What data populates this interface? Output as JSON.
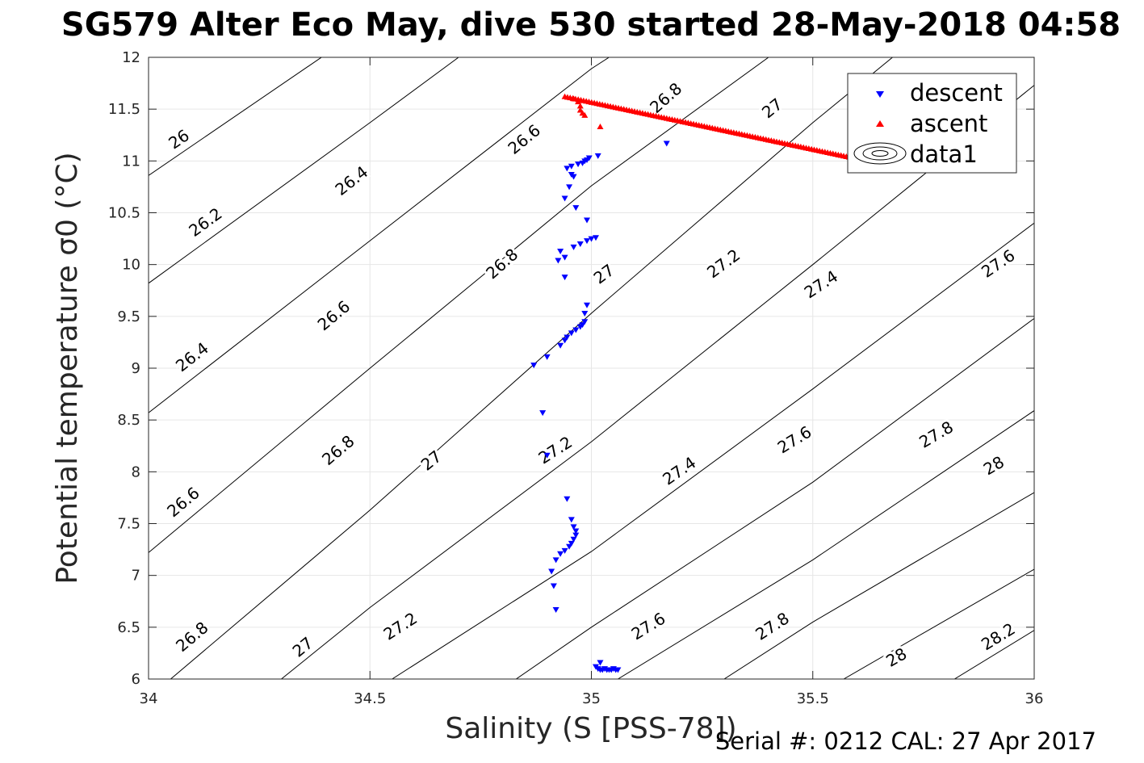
{
  "chart_data": {
    "type": "scatter",
    "title": "SG579 Alter Eco May, dive 530 started 28-May-2018 04:58",
    "xlabel": "Salinity (S [PSS-78])",
    "ylabel": "Potential temperature σ0 (°C)",
    "xlim": [
      34,
      36
    ],
    "ylim": [
      6,
      12
    ],
    "xticks": [
      34,
      34.5,
      35,
      35.5,
      36
    ],
    "xtick_labels": [
      "34",
      "34.5",
      "35",
      "35.5",
      "36"
    ],
    "yticks": [
      6,
      6.5,
      7,
      7.5,
      8,
      8.5,
      9,
      9.5,
      10,
      10.5,
      11,
      11.5,
      12
    ],
    "ytick_labels": [
      "6",
      "6.5",
      "7",
      "7.5",
      "8",
      "8.5",
      "9",
      "9.5",
      "10",
      "10.5",
      "11",
      "11.5",
      "12"
    ],
    "grid": true,
    "legend_position": "top-right",
    "footer": "Serial #: 0212  CAL: 27 Apr 2017",
    "contours": {
      "line_color": "#000000",
      "lines": [
        {
          "level": "26",
          "pts": [
            [
              34.0,
              10.86
            ],
            [
              34.5,
              12.32
            ]
          ],
          "labels": [
            [
              34.07,
              11.2
            ]
          ]
        },
        {
          "level": "26.2",
          "pts": [
            [
              34.0,
              9.82
            ],
            [
              34.5,
              11.37
            ],
            [
              34.7,
              12.0
            ]
          ],
          "labels": [
            [
              34.13,
              10.4
            ]
          ]
        },
        {
          "level": "26.4",
          "pts": [
            [
              34.0,
              8.57
            ],
            [
              34.5,
              10.23
            ],
            [
              35.0,
              11.89
            ],
            [
              35.04,
              12.0
            ]
          ],
          "labels": [
            [
              34.1,
              9.1
            ],
            [
              34.46,
              10.8
            ]
          ]
        },
        {
          "level": "26.6",
          "pts": [
            [
              34.0,
              7.22
            ],
            [
              34.5,
              9.0
            ],
            [
              35.0,
              10.76
            ],
            [
              35.4,
              12.0
            ]
          ],
          "labels": [
            [
              34.08,
              7.7
            ],
            [
              34.42,
              9.5
            ],
            [
              34.85,
              11.2
            ]
          ]
        },
        {
          "level": "26.8",
          "pts": [
            [
              34.05,
              6.0
            ],
            [
              34.5,
              7.63
            ],
            [
              35.0,
              9.53
            ],
            [
              35.5,
              11.37
            ],
            [
              35.68,
              12.0
            ]
          ],
          "labels": [
            [
              34.1,
              6.4
            ],
            [
              34.43,
              8.2
            ],
            [
              34.8,
              10.0
            ],
            [
              35.17,
              11.6
            ]
          ]
        },
        {
          "level": "27",
          "pts": [
            [
              34.3,
              6.0
            ],
            [
              34.5,
              6.69
            ],
            [
              35.0,
              8.29
            ],
            [
              35.5,
              10.0
            ],
            [
              36.0,
              11.73
            ]
          ],
          "labels": [
            [
              34.35,
              6.3
            ],
            [
              34.64,
              8.1
            ],
            [
              35.03,
              9.9
            ],
            [
              35.41,
              11.5
            ]
          ]
        },
        {
          "level": "27.2",
          "pts": [
            [
              34.55,
              6.0
            ],
            [
              35.0,
              7.23
            ],
            [
              35.5,
              8.8
            ],
            [
              36.0,
              10.4
            ]
          ],
          "labels": [
            [
              34.57,
              6.5
            ],
            [
              34.92,
              8.2
            ],
            [
              35.3,
              10.0
            ]
          ]
        },
        {
          "level": "27.4",
          "pts": [
            [
              34.83,
              6.0
            ],
            [
              35.0,
              6.5
            ],
            [
              35.5,
              7.9
            ],
            [
              36.0,
              9.48
            ]
          ],
          "labels": [
            [
              35.2,
              8.0
            ],
            [
              35.52,
              9.8
            ]
          ]
        },
        {
          "level": "27.6",
          "pts": [
            [
              35.06,
              6.0
            ],
            [
              35.5,
              7.15
            ],
            [
              36.0,
              8.59
            ]
          ],
          "labels": [
            [
              35.13,
              6.5
            ],
            [
              35.46,
              8.3
            ],
            [
              35.92,
              10.0
            ]
          ]
        },
        {
          "level": "27.8",
          "pts": [
            [
              35.3,
              6.0
            ],
            [
              35.5,
              6.55
            ],
            [
              36.0,
              7.8
            ]
          ],
          "labels": [
            [
              35.41,
              6.5
            ],
            [
              35.78,
              8.35
            ]
          ]
        },
        {
          "level": "28",
          "pts": [
            [
              35.57,
              6.0
            ],
            [
              36.0,
              7.06
            ]
          ],
          "labels": [
            [
              35.69,
              6.2
            ],
            [
              35.91,
              8.05
            ]
          ]
        },
        {
          "level": "28.2",
          "pts": [
            [
              35.82,
              6.0
            ],
            [
              36.0,
              6.47
            ]
          ],
          "labels": [
            [
              35.92,
              6.4
            ]
          ]
        }
      ]
    },
    "series": [
      {
        "name": "descent",
        "marker": "triangle-down",
        "color": "#0000ff",
        "points": [
          [
            35.17,
            11.17
          ],
          [
            35.015,
            11.05
          ],
          [
            34.995,
            11.03
          ],
          [
            34.99,
            11.01
          ],
          [
            34.985,
            11.0
          ],
          [
            34.98,
            10.98
          ],
          [
            34.97,
            10.97
          ],
          [
            34.955,
            10.95
          ],
          [
            34.945,
            10.93
          ],
          [
            34.955,
            10.87
          ],
          [
            34.96,
            10.85
          ],
          [
            34.95,
            10.75
          ],
          [
            34.94,
            10.64
          ],
          [
            34.965,
            10.55
          ],
          [
            34.99,
            10.43
          ],
          [
            35.01,
            10.26
          ],
          [
            35.0,
            10.25
          ],
          [
            34.99,
            10.23
          ],
          [
            34.975,
            10.2
          ],
          [
            34.96,
            10.17
          ],
          [
            34.93,
            10.13
          ],
          [
            34.94,
            10.07
          ],
          [
            34.925,
            10.04
          ],
          [
            34.94,
            9.88
          ],
          [
            34.99,
            9.61
          ],
          [
            34.985,
            9.53
          ],
          [
            34.985,
            9.45
          ],
          [
            34.98,
            9.42
          ],
          [
            34.975,
            9.4
          ],
          [
            34.965,
            9.37
          ],
          [
            34.955,
            9.34
          ],
          [
            34.945,
            9.3
          ],
          [
            34.94,
            9.27
          ],
          [
            34.93,
            9.22
          ],
          [
            34.9,
            9.11
          ],
          [
            34.87,
            9.03
          ],
          [
            34.89,
            8.57
          ],
          [
            34.9,
            8.16
          ],
          [
            34.945,
            7.74
          ],
          [
            34.955,
            7.54
          ],
          [
            34.96,
            7.47
          ],
          [
            34.965,
            7.43
          ],
          [
            34.965,
            7.39
          ],
          [
            34.96,
            7.35
          ],
          [
            34.955,
            7.31
          ],
          [
            34.95,
            7.28
          ],
          [
            34.94,
            7.24
          ],
          [
            34.93,
            7.21
          ],
          [
            34.92,
            7.15
          ],
          [
            34.91,
            7.04
          ],
          [
            34.915,
            6.9
          ],
          [
            34.92,
            6.67
          ],
          [
            35.02,
            6.16
          ],
          [
            35.01,
            6.12
          ],
          [
            35.015,
            6.1
          ],
          [
            35.02,
            6.09
          ],
          [
            35.025,
            6.09
          ],
          [
            35.03,
            6.1
          ],
          [
            35.035,
            6.09
          ],
          [
            35.04,
            6.09
          ],
          [
            35.045,
            6.09
          ],
          [
            35.05,
            6.1
          ],
          [
            35.055,
            6.09
          ],
          [
            35.06,
            6.09
          ]
        ]
      },
      {
        "name": "ascent",
        "marker": "triangle-up",
        "color": "#ff0000",
        "line_from": [
          34.94,
          11.62
        ],
        "line_to": [
          35.6,
          11.02
        ],
        "line_count": 110,
        "points": [
          [
            34.96,
            11.6
          ],
          [
            34.97,
            11.57
          ],
          [
            34.975,
            11.53
          ],
          [
            34.975,
            11.49
          ],
          [
            34.98,
            11.46
          ],
          [
            34.985,
            11.44
          ],
          [
            35.02,
            11.33
          ]
        ]
      },
      {
        "name": "data1",
        "marker": "contour-glyph",
        "color": "#000000",
        "points": []
      }
    ]
  }
}
